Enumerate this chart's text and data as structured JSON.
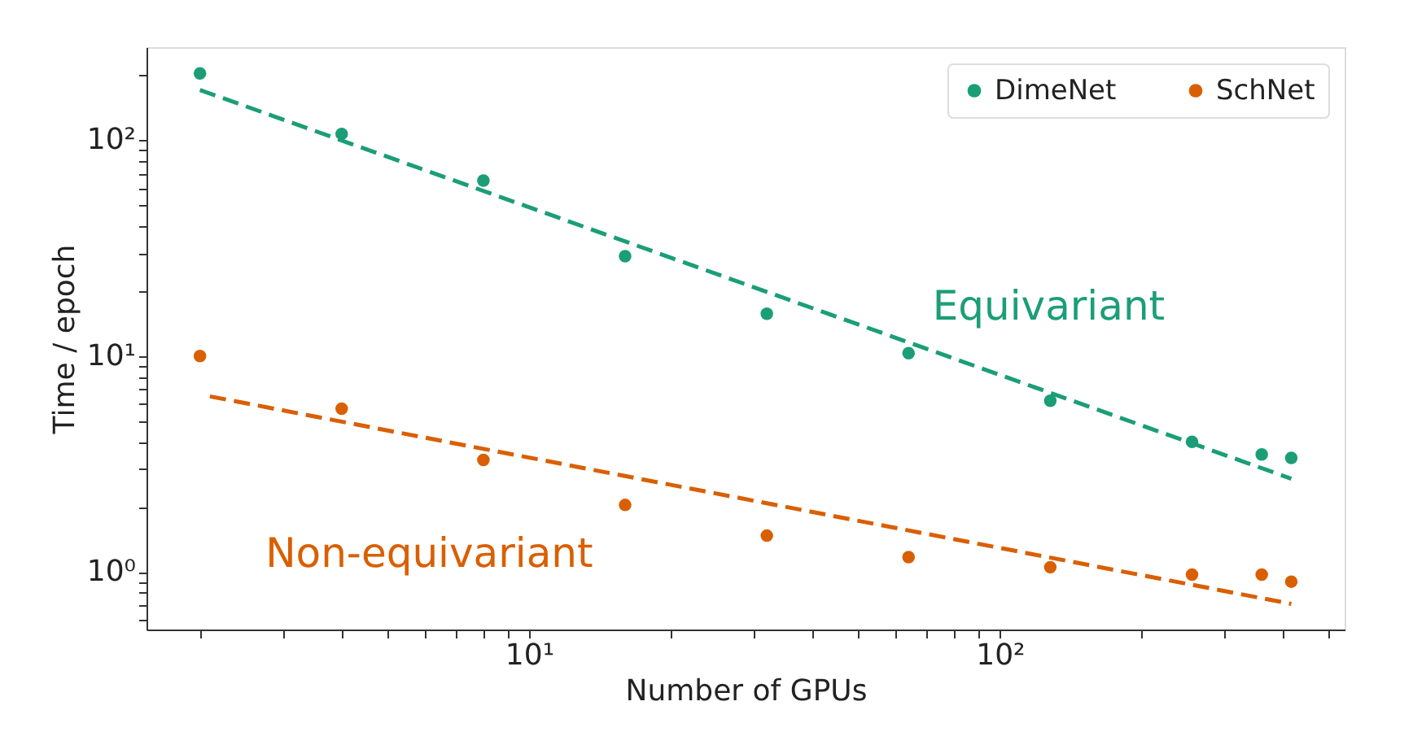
{
  "chart_data": {
    "type": "scatter",
    "xlabel": "Number of GPUs",
    "ylabel": "Time / epoch",
    "log": "xy",
    "grid": false,
    "legend": "top right",
    "marker": "circle",
    "xlim": [
      1.54,
      540
    ],
    "ylim": [
      0.54,
      270
    ],
    "xticks": [
      {
        "value": 2,
        "label": null
      },
      {
        "value": 3,
        "label": null
      },
      {
        "value": 4,
        "label": null
      },
      {
        "value": 5,
        "label": null
      },
      {
        "value": 6,
        "label": null
      },
      {
        "value": 7,
        "label": null
      },
      {
        "value": 8,
        "label": null
      },
      {
        "value": 9,
        "label": null
      },
      {
        "value": 10,
        "label": "10¹"
      },
      {
        "value": 20,
        "label": null
      },
      {
        "value": 30,
        "label": null
      },
      {
        "value": 40,
        "label": null
      },
      {
        "value": 50,
        "label": null
      },
      {
        "value": 60,
        "label": null
      },
      {
        "value": 70,
        "label": null
      },
      {
        "value": 80,
        "label": null
      },
      {
        "value": 90,
        "label": null
      },
      {
        "value": 100,
        "label": "10²"
      },
      {
        "value": 200,
        "label": null
      },
      {
        "value": 300,
        "label": null
      },
      {
        "value": 400,
        "label": null
      },
      {
        "value": 500,
        "label": null
      }
    ],
    "yticks": [
      {
        "value": 0.6,
        "label": null
      },
      {
        "value": 0.7,
        "label": null
      },
      {
        "value": 0.8,
        "label": null
      },
      {
        "value": 0.9,
        "label": null
      },
      {
        "value": 1,
        "label": "10⁰"
      },
      {
        "value": 2,
        "label": null
      },
      {
        "value": 3,
        "label": null
      },
      {
        "value": 4,
        "label": null
      },
      {
        "value": 5,
        "label": null
      },
      {
        "value": 6,
        "label": null
      },
      {
        "value": 7,
        "label": null
      },
      {
        "value": 8,
        "label": null
      },
      {
        "value": 9,
        "label": null
      },
      {
        "value": 10,
        "label": "10¹"
      },
      {
        "value": 20,
        "label": null
      },
      {
        "value": 30,
        "label": null
      },
      {
        "value": 40,
        "label": null
      },
      {
        "value": 50,
        "label": null
      },
      {
        "value": 60,
        "label": null
      },
      {
        "value": 70,
        "label": null
      },
      {
        "value": 80,
        "label": null
      },
      {
        "value": 90,
        "label": null
      },
      {
        "value": 100,
        "label": "10²"
      },
      {
        "value": 200,
        "label": null
      }
    ],
    "x": [
      2,
      4,
      8,
      16,
      32,
      64,
      128,
      256,
      360,
      416
    ],
    "series": [
      {
        "name": "DimeNet",
        "color": "#1b9e77",
        "values": [
          204,
          107,
          65,
          29,
          15.7,
          10.3,
          6.2,
          4.0,
          3.5,
          3.37
        ]
      },
      {
        "name": "SchNet",
        "color": "#d95f02",
        "values": [
          10,
          5.7,
          3.3,
          2.04,
          1.47,
          1.17,
          1.05,
          0.97,
          0.97,
          0.9
        ]
      },
      {
        "type": "line",
        "line_style": "dashed",
        "marker": "none",
        "color": "#1b9e77",
        "x": [
          2,
          416
        ],
        "values": [
          171,
          2.7
        ]
      },
      {
        "type": "line",
        "line_style": "dashed",
        "marker": "none",
        "color": "#d95f02",
        "x": [
          2.1,
          416
        ],
        "values": [
          6.5,
          0.71
        ]
      }
    ],
    "annotations": [
      "Equivariant",
      "Non-equivariant"
    ]
  }
}
